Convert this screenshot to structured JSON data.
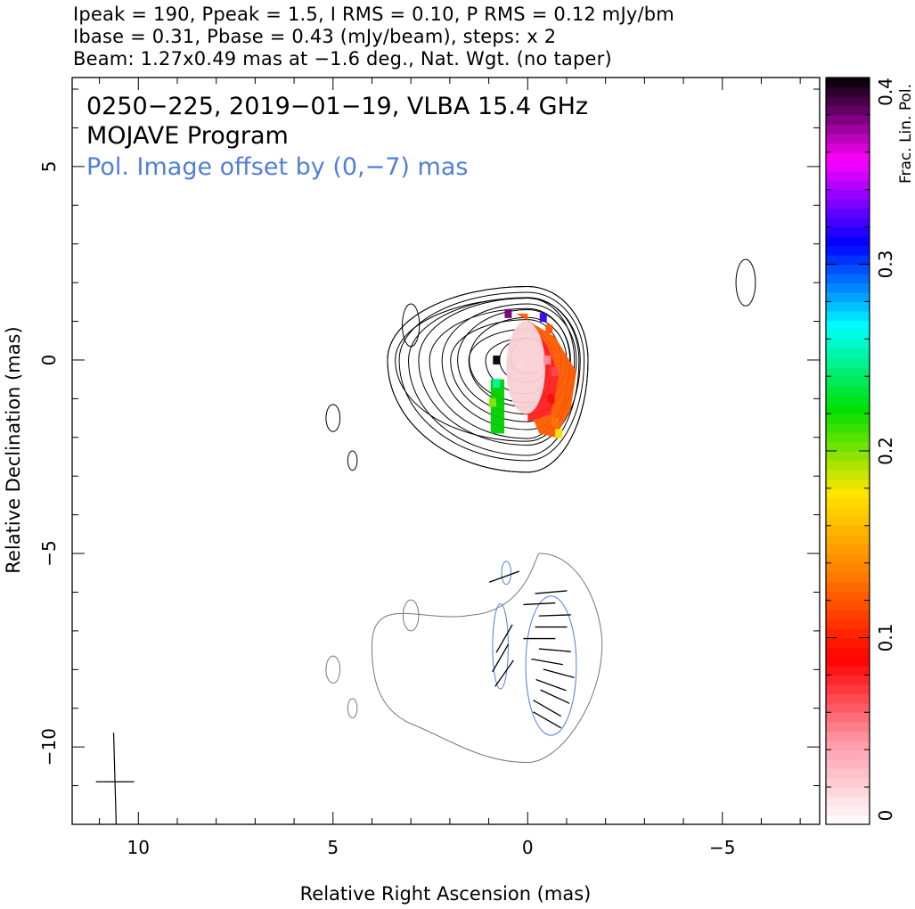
{
  "header": {
    "line1": "Ipeak = 190, Ppeak = 1.5, I RMS = 0.10, P RMS = 0.12 mJy/bm",
    "line2": "Ibase = 0.31, Pbase = 0.43 (mJy/beam), steps: x 2",
    "line3": "Beam: 1.27x0.49 mas at −1.6 deg., Nat. Wgt. (no taper)"
  },
  "chart_data": {
    "type": "heatmap",
    "annotations": [
      {
        "text": "0250−225, 2019−01−19, VLBA 15.4 GHz",
        "color": "#000000"
      },
      {
        "text": "MOJAVE Program",
        "color": "#000000"
      },
      {
        "text": "Pol. Image offset by (0,−7) mas",
        "color": "#4f7fd8"
      }
    ],
    "xlabel": "Relative Right Ascension (mas)",
    "ylabel": "Relative Declination (mas)",
    "xlim": [
      11.7,
      -7.5
    ],
    "ylim": [
      -12.0,
      7.3
    ],
    "x_ticks": [
      {
        "value": 10,
        "label": "10"
      },
      {
        "value": 5,
        "label": "5"
      },
      {
        "value": 0,
        "label": "0"
      },
      {
        "value": -5,
        "label": "−5"
      }
    ],
    "y_ticks": [
      {
        "value": 5,
        "label": "5"
      },
      {
        "value": 0,
        "label": "0"
      },
      {
        "value": -5,
        "label": "−5"
      },
      {
        "value": -10,
        "label": "−10"
      }
    ],
    "colorbar": {
      "label": "Frac. Lin. Pol.",
      "range": [
        0,
        0.4
      ],
      "ticks": [
        {
          "value": 0,
          "label": "0"
        },
        {
          "value": 0.1,
          "label": "0.1"
        },
        {
          "value": 0.2,
          "label": "0.2"
        },
        {
          "value": 0.3,
          "label": "0.3"
        },
        {
          "value": 0.4,
          "label": "0.4"
        }
      ],
      "colors": [
        "#ffffff",
        "#ff9aa8",
        "#ff0000",
        "#ff7a00",
        "#ffe600",
        "#00e000",
        "#00ffff",
        "#0000ff",
        "#ff00ff",
        "#000000"
      ]
    },
    "stokes_i_contours": {
      "color": "#000000",
      "center": [
        0,
        0
      ],
      "levels": [
        {
          "rx_east": 1.5,
          "rx_west": 1.0,
          "ry_north": 1.1,
          "ry_south": 1.1
        },
        {
          "rx_east": 1.8,
          "rx_west": 1.1,
          "ry_north": 1.3,
          "ry_south": 1.4
        },
        {
          "rx_east": 2.2,
          "rx_west": 1.25,
          "ry_north": 1.45,
          "ry_south": 1.8
        },
        {
          "rx_east": 2.8,
          "rx_west": 1.35,
          "ry_north": 1.6,
          "ry_south": 2.2
        },
        {
          "rx_east": 3.3,
          "rx_west": 1.45,
          "ry_north": 1.75,
          "ry_south": 2.6
        },
        {
          "rx_east": 3.6,
          "rx_west": 1.55,
          "ry_north": 1.9,
          "ry_south": 2.9
        },
        {
          "rx_east": 3.4,
          "rx_west": 1.2,
          "ry_north": 1.6,
          "ry_south": 2.1
        }
      ],
      "islands": [
        {
          "x": 3.0,
          "y": 0.9,
          "rx": 0.22,
          "ry": 0.55
        },
        {
          "x": 5.0,
          "y": -1.5,
          "rx": 0.18,
          "ry": 0.35
        },
        {
          "x": 4.5,
          "y": -2.6,
          "rx": 0.12,
          "ry": 0.25
        },
        {
          "x": -5.6,
          "y": 2.0,
          "rx": 0.25,
          "ry": 0.6
        }
      ]
    },
    "pol_contours": {
      "outer_color": "#777777",
      "inner_color": "#4f7fd8",
      "outer_center": [
        0.5,
        -7.6
      ],
      "outer_rx": [
        3.5,
        1.9
      ],
      "outer_ry": [
        2.6,
        2.8
      ],
      "islands": [
        {
          "x": 3.0,
          "y": -6.6,
          "rx": 0.2,
          "ry": 0.4
        },
        {
          "x": 5.0,
          "y": -8.0,
          "rx": 0.18,
          "ry": 0.35
        },
        {
          "x": 4.5,
          "y": -9.0,
          "rx": 0.12,
          "ry": 0.25
        }
      ],
      "inner": [
        {
          "x": -0.6,
          "y": -7.9,
          "rx": 0.65,
          "ry": 1.8
        },
        {
          "x": 0.7,
          "y": -7.4,
          "rx": 0.2,
          "ry": 1.1
        },
        {
          "x": 0.55,
          "y": -5.5,
          "rx": 0.12,
          "ry": 0.3
        }
      ]
    },
    "frac_pol_pixels": [
      {
        "x": 0.8,
        "y": 0.0,
        "v": 0.4
      },
      {
        "x": 0.8,
        "y": -0.6,
        "v": 0.25
      },
      {
        "x": 0.9,
        "y": -1.1,
        "v": 0.2
      },
      {
        "x": 0.5,
        "y": 1.2,
        "v": 0.38
      },
      {
        "x": -0.4,
        "y": 1.1,
        "v": 0.32
      },
      {
        "x": -0.55,
        "y": 0.8,
        "v": 0.12
      },
      {
        "x": -0.5,
        "y": 0.0,
        "v": 0.05
      },
      {
        "x": -0.7,
        "y": -0.3,
        "v": 0.07
      },
      {
        "x": -0.6,
        "y": -1.0,
        "v": 0.09
      },
      {
        "x": -0.7,
        "y": -1.6,
        "v": 0.13
      },
      {
        "x": -0.8,
        "y": -1.9,
        "v": 0.18
      },
      {
        "x": 0.2,
        "y": -0.1,
        "v": 0.02
      }
    ],
    "pol_vectors": [
      {
        "x": -0.6,
        "y": -6.0,
        "angle": 5
      },
      {
        "x": -0.3,
        "y": -6.3,
        "angle": 3
      },
      {
        "x": -0.7,
        "y": -6.6,
        "angle": 2
      },
      {
        "x": -0.6,
        "y": -6.9,
        "angle": 0
      },
      {
        "x": -0.3,
        "y": -7.2,
        "angle": 0
      },
      {
        "x": -0.7,
        "y": -7.5,
        "angle": -5
      },
      {
        "x": -0.5,
        "y": -7.8,
        "angle": -10
      },
      {
        "x": -0.8,
        "y": -8.1,
        "angle": -15
      },
      {
        "x": -0.6,
        "y": -8.4,
        "angle": -20
      },
      {
        "x": -0.7,
        "y": -8.7,
        "angle": -25
      },
      {
        "x": -0.5,
        "y": -9.0,
        "angle": -30
      },
      {
        "x": -0.5,
        "y": -9.3,
        "angle": -30
      },
      {
        "x": 0.6,
        "y": -7.2,
        "angle": 60
      },
      {
        "x": 0.7,
        "y": -7.7,
        "angle": 60
      },
      {
        "x": 0.6,
        "y": -8.1,
        "angle": 55
      },
      {
        "x": 0.6,
        "y": -5.6,
        "angle": 20
      }
    ],
    "beam": {
      "x": 10.6,
      "y": -10.9,
      "major": 1.27,
      "minor": 0.49,
      "pa": -1.6
    }
  }
}
